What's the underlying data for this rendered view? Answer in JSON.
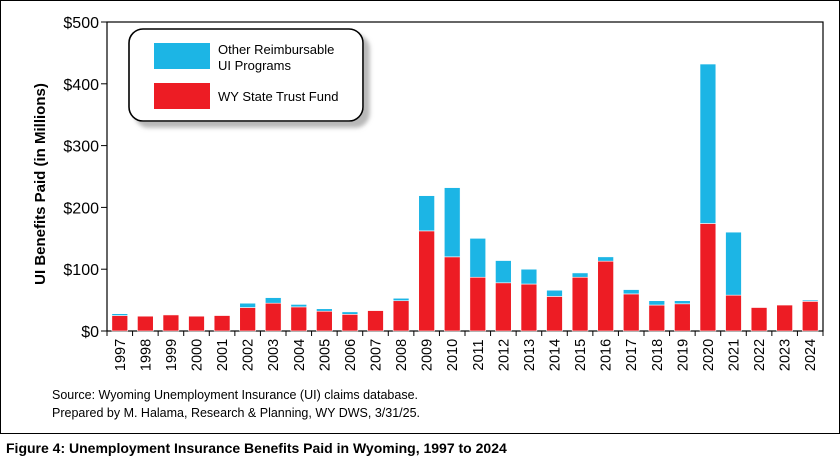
{
  "chart_data": {
    "type": "bar",
    "stacked": true,
    "xlabel": "",
    "ylabel": "UI Benefits Paid (in Millions)",
    "ylim": [
      0,
      500
    ],
    "yticks": [
      0,
      100,
      200,
      300,
      400,
      500
    ],
    "ytick_labels": [
      "$0",
      "$100",
      "$200",
      "$300",
      "$400",
      "$500"
    ],
    "categories": [
      "1997",
      "1998",
      "1999",
      "2000",
      "2001",
      "2002",
      "2003",
      "2004",
      "2005",
      "2006",
      "2007",
      "2008",
      "2009",
      "2010",
      "2011",
      "2012",
      "2013",
      "2014",
      "2015",
      "2016",
      "2017",
      "2018",
      "2019",
      "2020",
      "2021",
      "2022",
      "2023",
      "2024"
    ],
    "series": [
      {
        "name": "WY State Trust Fund",
        "color": "#ed1c24",
        "values": [
          25,
          24,
          26,
          24,
          25,
          38,
          45,
          39,
          32,
          27,
          33,
          49,
          162,
          120,
          87,
          78,
          76,
          56,
          87,
          113,
          60,
          42,
          44,
          174,
          58,
          38,
          42,
          48
        ]
      },
      {
        "name": "Other Reimbursable UI Programs",
        "color": "#1cb5e5",
        "values": [
          3,
          0,
          0,
          0,
          0,
          7,
          9,
          4,
          4,
          4,
          0,
          4,
          57,
          112,
          63,
          36,
          24,
          10,
          7,
          7,
          7,
          7,
          5,
          258,
          102,
          0,
          0,
          2
        ]
      }
    ],
    "legend": {
      "position": "top-left",
      "entries": [
        {
          "label": "Other Reimbursable UI Programs",
          "color": "#1cb5e5"
        },
        {
          "label": "WY State Trust Fund",
          "color": "#ed1c24"
        }
      ]
    },
    "grid": false
  },
  "legend_text": {
    "other_line1": "Other Reimbursable",
    "other_line2": "UI Programs",
    "trust": "WY State Trust Fund"
  },
  "source": "Source: Wyoming Unemployment Insurance (UI) claims database.",
  "prepared": "Prepared by M. Halama, Research & Planning, WY DWS, 3/31/25.",
  "caption": "Figure 4: Unemployment Insurance Benefits Paid in Wyoming, 1997 to 2024"
}
